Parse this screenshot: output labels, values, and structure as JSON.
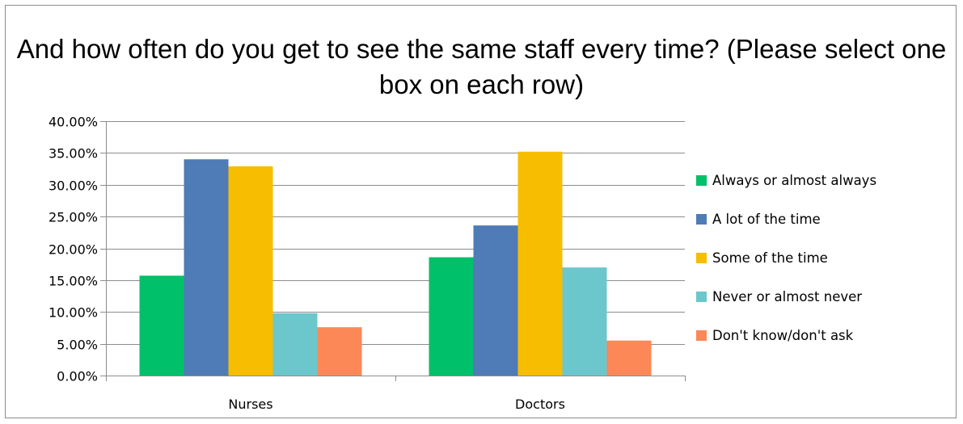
{
  "chart_data": {
    "type": "bar",
    "title": "And how often do you get to see the same staff every time? (Please select one box on each row)",
    "categories": [
      "Nurses",
      "Doctors"
    ],
    "series": [
      {
        "name": "Always or almost always",
        "color": "#00c06a",
        "values": [
          0.157,
          0.186
        ]
      },
      {
        "name": "A lot of the time",
        "color": "#4f7bb6",
        "values": [
          0.34,
          0.236
        ]
      },
      {
        "name": "Some of the time",
        "color": "#f7bd00",
        "values": [
          0.329,
          0.352
        ]
      },
      {
        "name": "Never or almost never",
        "color": "#6cc7cc",
        "values": [
          0.098,
          0.17
        ]
      },
      {
        "name": "Don't know/don't ask",
        "color": "#fb8856",
        "values": [
          0.076,
          0.055
        ]
      }
    ],
    "ylim": [
      0,
      0.4
    ],
    "yticks": [
      "0.00%",
      "5.00%",
      "10.00%",
      "15.00%",
      "20.00%",
      "25.00%",
      "30.00%",
      "35.00%",
      "40.00%"
    ],
    "grid": true,
    "legend_position": "right"
  }
}
